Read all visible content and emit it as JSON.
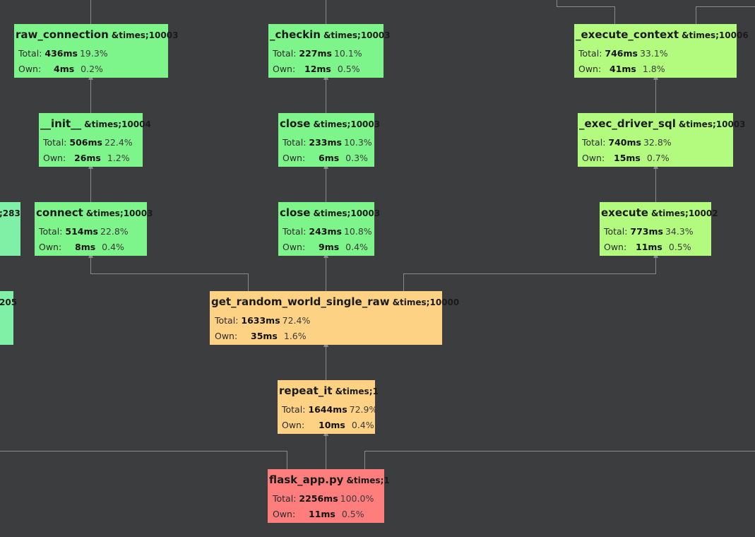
{
  "colors": {
    "background": "#3c3d3f",
    "edge": "#8a8a8a",
    "green": "#7ef58a",
    "lime": "#b3fb7f",
    "orange": "#fed285",
    "red": "#fe7d7d",
    "mint": "#7ff0a6"
  },
  "labels": {
    "total": "Total:",
    "own": "Own:"
  },
  "nodes": {
    "raw_connection": {
      "name": "raw_connection",
      "count": "&times;10003",
      "total_time": "436ms",
      "total_pct": "19.3%",
      "own_time": "4ms",
      "own_pct": "0.2%"
    },
    "init": {
      "name": "__init__",
      "count": "&times;10004",
      "total_time": "506ms",
      "total_pct": "22.4%",
      "own_time": "26ms",
      "own_pct": "1.2%"
    },
    "connect": {
      "name": "connect",
      "count": "&times;10003",
      "total_time": "514ms",
      "total_pct": "22.8%",
      "own_time": "8ms",
      "own_pct": "0.4%"
    },
    "checkin": {
      "name": "_checkin",
      "count": "&times;10003",
      "total_time": "227ms",
      "total_pct": "10.1%",
      "own_time": "12ms",
      "own_pct": "0.5%"
    },
    "close_upper": {
      "name": "close",
      "count": "&times;10003",
      "total_time": "233ms",
      "total_pct": "10.3%",
      "own_time": "6ms",
      "own_pct": "0.3%"
    },
    "close_lower": {
      "name": "close",
      "count": "&times;10003",
      "total_time": "243ms",
      "total_pct": "10.8%",
      "own_time": "9ms",
      "own_pct": "0.4%"
    },
    "execute_context": {
      "name": "_execute_context",
      "count": "&times;10006",
      "total_time": "746ms",
      "total_pct": "33.1%",
      "own_time": "41ms",
      "own_pct": "1.8%"
    },
    "exec_driver_sql": {
      "name": "_exec_driver_sql",
      "count": "&times;10003",
      "total_time": "740ms",
      "total_pct": "32.8%",
      "own_time": "15ms",
      "own_pct": "0.7%"
    },
    "execute": {
      "name": "execute",
      "count": "&times;10002",
      "total_time": "773ms",
      "total_pct": "34.3%",
      "own_time": "11ms",
      "own_pct": "0.5%"
    },
    "get_random_world": {
      "name": "get_random_world_single_raw",
      "count": "&times;10000",
      "total_time": "1633ms",
      "total_pct": "72.4%",
      "own_time": "35ms",
      "own_pct": "1.6%"
    },
    "repeat_it": {
      "name": "repeat_it",
      "count": "&times;1",
      "total_time": "1644ms",
      "total_pct": "72.9%",
      "own_time": "10ms",
      "own_pct": "0.4%"
    },
    "flask_app": {
      "name": "flask_app.py",
      "count": "&times;1",
      "total_time": "2256ms",
      "total_pct": "100.0%",
      "own_time": "11ms",
      "own_pct": "0.5%"
    }
  },
  "partial_nodes": {
    "left_upper_count": ";283",
    "left_lower_count": "205"
  }
}
